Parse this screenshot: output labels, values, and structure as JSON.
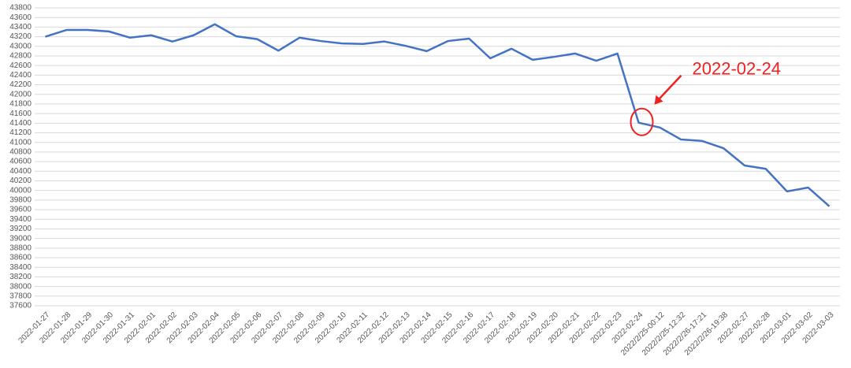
{
  "chart_data": {
    "type": "line",
    "categories": [
      "2022-01-27",
      "2022-01-28",
      "2022-01-29",
      "2022-01-30",
      "2022-01-31",
      "2022-02-01",
      "2022-02-02",
      "2022-02-03",
      "2022-02-04",
      "2022-02-05",
      "2022-02-06",
      "2022-02-07",
      "2022-02-08",
      "2022-02-09",
      "2022-02-10",
      "2022-02-11",
      "2022-02-12",
      "2022-02-13",
      "2022-02-14",
      "2022-02-15",
      "2022-02-16",
      "2022-02-17",
      "2022-02-18",
      "2022-02-19",
      "2022-02-20",
      "2022-02-21",
      "2022-02-22",
      "2022-02-23",
      "2022-02-24",
      "2022/2/25-00:12",
      "2022/2/25-12:32",
      "2022/2/26-17:21",
      "2022/2/26-19:38",
      "2022-02-27",
      "2022-02-28",
      "2022-03-01",
      "2022-03-02",
      "2022-03-03"
    ],
    "values": [
      43200,
      43340,
      43340,
      43310,
      43180,
      43230,
      43100,
      43230,
      43460,
      43210,
      43150,
      42910,
      43180,
      43110,
      43060,
      43050,
      43100,
      43010,
      42900,
      43110,
      43160,
      42750,
      42950,
      42720,
      42780,
      42850,
      42700,
      42850,
      41410,
      41310,
      41060,
      41030,
      40880,
      40520,
      40450,
      39980,
      40060,
      39670
    ],
    "color": "#4472c4",
    "ylim": [
      37600,
      43800
    ],
    "yticks": [
      37600,
      37800,
      38000,
      38200,
      38400,
      38600,
      38800,
      39000,
      39200,
      39400,
      39600,
      39800,
      40000,
      40200,
      40400,
      40600,
      40800,
      41000,
      41200,
      41400,
      41600,
      41800,
      42000,
      42200,
      42400,
      42600,
      42800,
      43000,
      43200,
      43400,
      43600,
      43800
    ],
    "grid": true,
    "annotation": "2022-02-24"
  }
}
